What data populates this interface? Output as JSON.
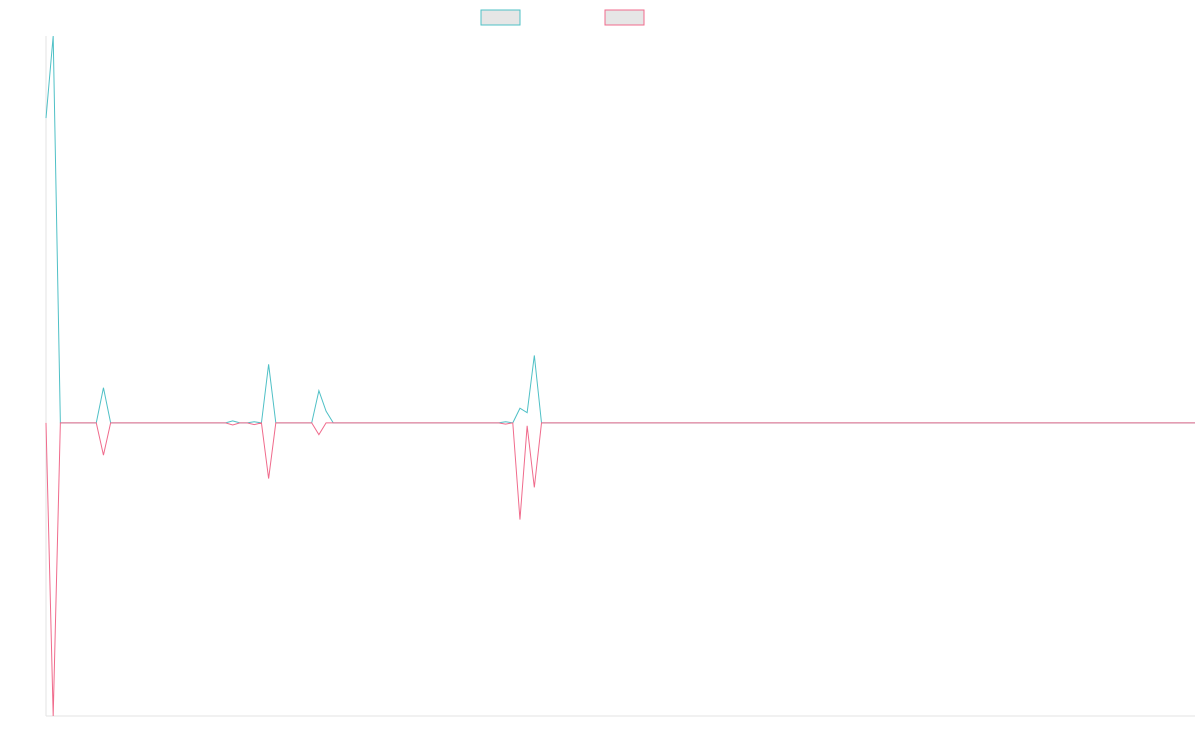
{
  "chart_data": {
    "type": "line",
    "title": "",
    "xlabel": "",
    "ylabel": "",
    "grid": false,
    "legend": "top-center",
    "x": [
      0,
      1,
      2,
      3,
      4,
      5,
      6,
      7,
      8,
      9,
      10,
      11,
      12,
      13,
      14,
      15,
      16,
      17,
      18,
      19,
      20,
      21,
      22,
      23,
      24,
      25,
      26,
      27,
      28,
      29,
      30,
      31,
      32,
      33,
      34,
      35,
      36,
      37,
      38,
      39,
      40,
      41,
      42,
      43,
      44,
      45,
      46,
      47,
      48,
      49,
      50,
      51,
      52,
      53,
      54,
      55,
      56,
      57,
      58,
      59,
      60,
      61,
      62,
      63,
      64,
      65,
      66,
      67,
      68,
      69,
      70,
      71,
      72,
      73,
      74,
      75,
      76,
      77,
      78,
      79,
      80,
      81,
      82,
      83,
      84,
      85,
      86,
      87,
      88,
      89,
      90,
      91,
      92,
      93,
      94,
      95,
      96,
      97,
      98,
      99,
      100,
      101,
      102,
      103,
      104,
      105,
      106,
      107,
      108,
      109,
      110,
      111,
      112,
      113,
      114,
      115,
      116,
      117,
      118,
      119,
      120,
      121,
      122,
      123,
      124,
      125,
      126,
      127,
      128,
      129,
      130,
      131,
      132,
      133,
      134,
      135,
      136,
      137,
      138,
      139,
      140,
      141,
      142,
      143,
      144,
      145,
      146,
      147,
      148,
      149,
      150,
      151,
      152,
      153,
      154,
      155,
      156,
      157,
      158,
      159,
      160
    ],
    "ylim": [
      -100,
      132
    ],
    "series": [
      {
        "name": "",
        "color": "#4fc0c6",
        "fill": "#e6e6e6",
        "values": [
          104,
          132,
          0,
          0,
          0,
          0,
          0,
          0,
          12,
          0,
          0,
          0,
          0,
          0,
          0,
          0,
          0,
          0,
          0,
          0,
          0,
          0,
          0,
          0,
          0,
          0,
          0.7,
          0,
          0,
          0.4,
          0,
          20,
          0,
          0,
          0,
          0,
          0,
          0,
          11,
          4,
          0,
          0,
          0,
          0,
          0,
          0,
          0,
          0,
          0,
          0,
          0,
          0,
          0,
          0,
          0,
          0,
          0,
          0,
          0,
          0,
          0,
          0,
          0,
          0,
          0.4,
          0,
          5,
          3.5,
          23,
          0,
          0,
          0,
          0,
          0,
          0,
          0,
          0,
          0,
          0,
          0,
          0,
          0,
          0,
          0,
          0,
          0,
          0,
          0,
          0,
          0,
          0,
          0,
          0,
          0,
          0,
          0,
          0,
          0,
          0,
          0,
          0,
          0,
          0,
          0,
          0,
          0,
          0,
          0,
          0,
          0,
          0,
          0,
          0,
          0,
          0,
          0,
          0,
          0,
          0,
          0,
          0,
          0,
          0,
          0,
          0,
          0,
          0,
          0,
          0,
          0,
          0,
          0,
          0,
          0,
          0,
          0,
          0,
          0,
          0,
          0,
          0,
          0,
          0,
          0,
          0,
          0,
          0,
          0,
          0,
          0,
          0,
          0,
          0,
          0,
          0,
          0,
          0,
          0,
          0,
          0,
          0
        ]
      },
      {
        "name": "",
        "color": "#f06b8c",
        "fill": "#e6e6e6",
        "values": [
          0,
          -100,
          0,
          0,
          0,
          0,
          0,
          0,
          -11,
          0,
          0,
          0,
          0,
          0,
          0,
          0,
          0,
          0,
          0,
          0,
          0,
          0,
          0,
          0,
          0,
          0,
          -0.7,
          0,
          0,
          -0.6,
          0,
          -19,
          0,
          0,
          0,
          0,
          0,
          0,
          -4,
          0,
          0,
          0,
          0,
          0,
          0,
          0,
          0,
          0,
          0,
          0,
          0,
          0,
          0,
          0,
          0,
          0,
          0,
          0,
          0,
          0,
          0,
          0,
          0,
          0,
          -0.4,
          0,
          -33,
          -1,
          -22,
          0,
          0,
          0,
          0,
          0,
          0,
          0,
          0,
          0,
          0,
          0,
          0,
          0,
          0,
          0,
          0,
          0,
          0,
          0,
          0,
          0,
          0,
          0,
          0,
          0,
          0,
          0,
          0,
          0,
          0,
          0,
          0,
          0,
          0,
          0,
          0,
          0,
          0,
          0,
          0,
          0,
          0,
          0,
          0,
          0,
          0,
          0,
          0,
          0,
          0,
          0,
          0,
          0,
          0,
          0,
          0,
          0,
          0,
          0,
          0,
          0,
          0,
          0,
          0,
          0,
          0,
          0,
          0,
          0,
          0,
          0,
          0,
          0,
          0,
          0,
          0,
          0,
          0,
          0,
          0,
          0,
          0,
          0,
          0,
          0,
          0,
          0,
          0,
          0,
          0,
          0,
          0
        ]
      }
    ]
  }
}
